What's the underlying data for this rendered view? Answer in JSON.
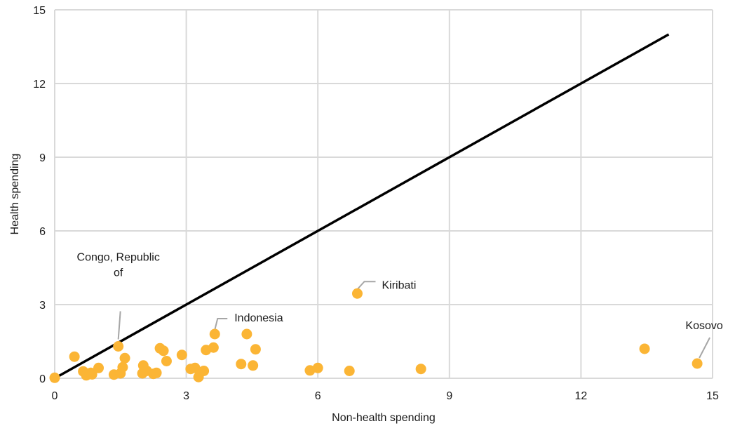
{
  "chart_data": {
    "type": "scatter",
    "xlabel": "Non-health spending",
    "ylabel": "Health spending",
    "xlim": [
      0,
      15
    ],
    "ylim": [
      0,
      15
    ],
    "xticks": [
      "0",
      "3",
      "6",
      "9",
      "12",
      "15"
    ],
    "yticks": [
      "0",
      "3",
      "6",
      "9",
      "12",
      "15"
    ],
    "grid": true,
    "colors": {
      "points": "#FBB535",
      "line": "#000000",
      "grid": "#d9d9d9",
      "leader": "#a6a6a6"
    },
    "reference_line": {
      "x": [
        0,
        14
      ],
      "y": [
        0,
        14
      ]
    },
    "points": [
      [
        0.0,
        0.02
      ],
      [
        0.45,
        0.88
      ],
      [
        0.65,
        0.28
      ],
      [
        0.72,
        0.12
      ],
      [
        0.82,
        0.22
      ],
      [
        0.85,
        0.16
      ],
      [
        1.0,
        0.42
      ],
      [
        1.35,
        0.15
      ],
      [
        1.45,
        1.3
      ],
      [
        1.5,
        0.2
      ],
      [
        1.55,
        0.45
      ],
      [
        1.6,
        0.82
      ],
      [
        2.0,
        0.2
      ],
      [
        2.02,
        0.52
      ],
      [
        2.1,
        0.3
      ],
      [
        2.25,
        0.18
      ],
      [
        2.32,
        0.22
      ],
      [
        2.4,
        1.22
      ],
      [
        2.48,
        1.12
      ],
      [
        2.55,
        0.7
      ],
      [
        2.9,
        0.95
      ],
      [
        3.1,
        0.38
      ],
      [
        3.2,
        0.42
      ],
      [
        3.28,
        0.05
      ],
      [
        3.4,
        0.3
      ],
      [
        3.45,
        1.15
      ],
      [
        3.62,
        1.25
      ],
      [
        3.65,
        1.8
      ],
      [
        4.25,
        0.58
      ],
      [
        4.38,
        1.8
      ],
      [
        4.52,
        0.52
      ],
      [
        4.58,
        1.18
      ],
      [
        5.82,
        0.32
      ],
      [
        6.0,
        0.42
      ],
      [
        6.72,
        0.3
      ],
      [
        6.9,
        3.45
      ],
      [
        8.35,
        0.38
      ],
      [
        13.45,
        1.2
      ],
      [
        14.65,
        0.6
      ]
    ],
    "annotations": [
      {
        "lines": [
          "Congo, Republic",
          "of"
        ],
        "point": [
          1.45,
          1.3
        ]
      },
      {
        "lines": [
          "Indonesia"
        ],
        "point": [
          3.65,
          1.8
        ]
      },
      {
        "lines": [
          "Kiribati"
        ],
        "point": [
          6.9,
          3.45
        ]
      },
      {
        "lines": [
          "Kosovo"
        ],
        "point": [
          14.65,
          0.6
        ]
      }
    ]
  }
}
